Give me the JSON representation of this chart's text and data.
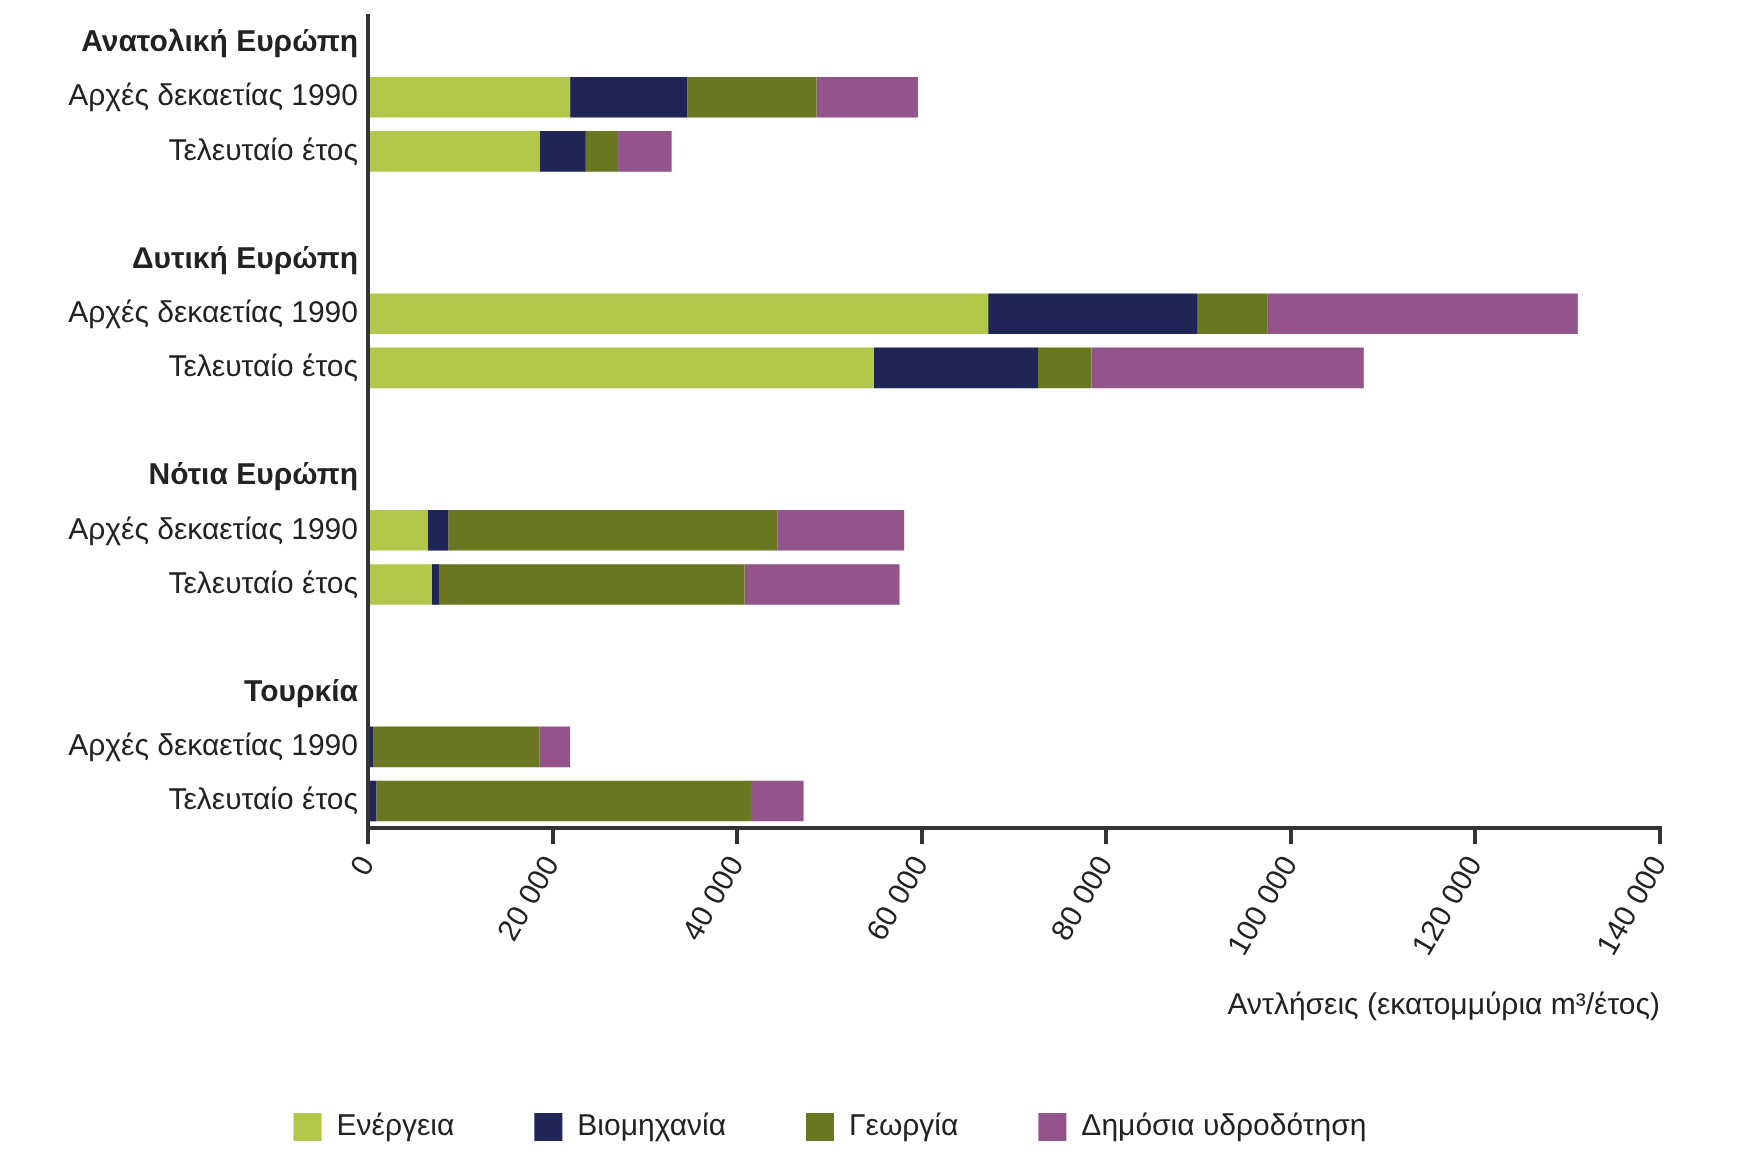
{
  "chart_data": {
    "type": "bar",
    "orientation": "horizontal",
    "stacked": true,
    "xlabel": "Αντλήσεις (εκατομμύρια m³/έτος)",
    "categories": [
      "Ανατολική Ευρώπη",
      "Αρχές δεκαετίας 1990",
      "Τελευταίο έτος",
      null,
      "Δυτική Ευρώπη",
      "Αρχές δεκαετίας 1990",
      "Τελευταίο έτος",
      null,
      "Νότια Ευρώπη",
      "Αρχές δεκαετίας 1990",
      "Τελευταίο έτος",
      null,
      "Τουρκία",
      "Αρχές δεκαετίας 1990",
      "Τελευταίο έτος"
    ],
    "series": [
      {
        "name": "Ενέργεια",
        "color": "#b3c74a",
        "values": [
          null,
          21900,
          18600,
          null,
          null,
          67200,
          54800,
          null,
          null,
          6500,
          6900,
          null,
          null,
          null,
          null
        ]
      },
      {
        "name": "Βιομηχανία",
        "color": "#1f2556",
        "values": [
          null,
          12700,
          5000,
          null,
          null,
          22700,
          17800,
          null,
          null,
          2200,
          800,
          null,
          null,
          600,
          900
        ]
      },
      {
        "name": "Γεωργία",
        "color": "#6b7720",
        "values": [
          null,
          14000,
          3500,
          null,
          null,
          7600,
          5800,
          null,
          null,
          35700,
          33100,
          null,
          null,
          18000,
          40600
        ]
      },
      {
        "name": "Δημόσια υδροδότηση",
        "color": "#93548c",
        "values": [
          null,
          11000,
          5800,
          null,
          null,
          33600,
          29500,
          null,
          null,
          13700,
          16800,
          null,
          null,
          3300,
          5700
        ]
      }
    ],
    "xlim": [
      0,
      140000
    ],
    "xticks": [
      0,
      {
        "value": 20000,
        "label": "20 000"
      },
      {
        "value": 40000,
        "label": "40 000"
      },
      {
        "value": 60000,
        "label": "60 000"
      },
      {
        "value": 80000,
        "label": "80 000"
      },
      {
        "value": 100000,
        "label": "100 000"
      },
      {
        "value": 120000,
        "label": "120 000"
      },
      {
        "value": 140000,
        "label": "140 000"
      }
    ],
    "grid": false,
    "legend": "bottom"
  }
}
